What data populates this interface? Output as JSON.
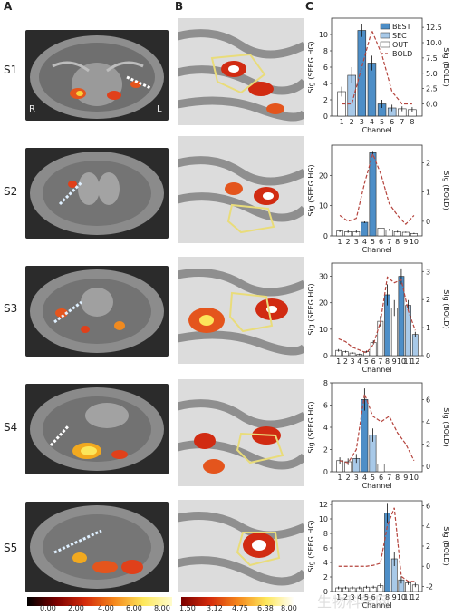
{
  "panels": {
    "a": "A",
    "b": "B",
    "c": "C"
  },
  "subjects": [
    "S1",
    "S2",
    "S3",
    "S4",
    "S5"
  ],
  "orientation": {
    "right": "R",
    "left": "L"
  },
  "colorbar_a": {
    "ticks": [
      "0.00",
      "2.00",
      "4.00",
      "6.00",
      "8.00"
    ]
  },
  "colorbar_b": {
    "ticks": [
      "1.50",
      "3.12",
      "4.75",
      "6.38",
      "8.00"
    ]
  },
  "watermark": "生物科学网",
  "chart_data": [
    {
      "type": "bar",
      "subject": "S1",
      "categories": [
        "1",
        "2",
        "3",
        "4",
        "5",
        "6",
        "7",
        "8"
      ],
      "groups": [
        "OUT",
        "SEC",
        "BEST",
        "BEST",
        "BEST",
        "SEC",
        "OUT",
        "OUT"
      ],
      "values": [
        3,
        5,
        10.5,
        6.5,
        1.5,
        1.0,
        0.9,
        0.8
      ],
      "errors": [
        0.6,
        1.0,
        0.8,
        0.9,
        0.5,
        0.4,
        0.3,
        0.3
      ],
      "bold": [
        0,
        0,
        6,
        12,
        8,
        2,
        0,
        0
      ],
      "ylim": [
        0,
        12
      ],
      "yticks": [
        0,
        2,
        4,
        6,
        8,
        10
      ],
      "ylim2": [
        -2,
        14
      ],
      "yticks2": [
        "0.0",
        "2.5",
        "5.0",
        "7.5",
        "10.0",
        "12.5"
      ],
      "xlabel": "Channel",
      "ylabel": "Sig (SEEG HG)",
      "ylabel2": "Sig (BOLD)",
      "legend": [
        "BEST",
        "SEC",
        "OUT",
        "BOLD"
      ]
    },
    {
      "type": "bar",
      "subject": "S2",
      "categories": [
        "1",
        "2",
        "3",
        "4",
        "5",
        "6",
        "7",
        "8",
        "9",
        "10"
      ],
      "groups": [
        "OUT",
        "OUT",
        "OUT",
        "BEST",
        "BEST",
        "OUT",
        "OUT",
        "OUT",
        "OUT",
        "OUT"
      ],
      "values": [
        1.6,
        1.4,
        1.4,
        4.5,
        27.5,
        2.6,
        2.0,
        1.4,
        1.2,
        0.8
      ],
      "errors": [
        0.4,
        0.4,
        0.4,
        0.3,
        0.6,
        0.3,
        0.3,
        0.3,
        0.2,
        0.2
      ],
      "bold": [
        0.2,
        0.0,
        0.1,
        1.3,
        2.3,
        1.6,
        0.6,
        0.2,
        -0.1,
        0.2
      ],
      "ylim": [
        0,
        30
      ],
      "yticks": [
        0,
        10,
        20
      ],
      "ylim2": [
        -0.5,
        2.6
      ],
      "yticks2": [
        "0",
        "1",
        "2"
      ],
      "xlabel": "Channel",
      "ylabel": "Sig (SEEG HG)",
      "ylabel2": "Sig (BOLD)"
    },
    {
      "type": "bar",
      "subject": "S3",
      "categories": [
        "1",
        "2",
        "3",
        "4",
        "5",
        "6",
        "7",
        "8",
        "9",
        "10",
        "11",
        "12"
      ],
      "groups": [
        "OUT",
        "OUT",
        "OUT",
        "OUT",
        "OUT",
        "OUT",
        "OUT",
        "BEST",
        "OUT",
        "BEST",
        "SEC",
        "SEC"
      ],
      "values": [
        2,
        1.5,
        1,
        0.5,
        1.5,
        5,
        13,
        23,
        18,
        30,
        19,
        8
      ],
      "errors": [
        0.5,
        0.4,
        0.3,
        0.3,
        0.4,
        0.8,
        2,
        4,
        3,
        3,
        2,
        1
      ],
      "bold": [
        0.6,
        0.5,
        0.3,
        0.2,
        0.1,
        0.4,
        1.2,
        2.8,
        2.6,
        2.7,
        1.6,
        0.9
      ],
      "ylim": [
        0,
        35
      ],
      "yticks": [
        0,
        10,
        20,
        30
      ],
      "ylim2": [
        0,
        3.3
      ],
      "yticks2": [
        "0",
        "1",
        "2",
        "3"
      ],
      "xlabel": "Channel",
      "ylabel": "Sig (SEEG HG)",
      "ylabel2": "Sig (BOLD)"
    },
    {
      "type": "bar",
      "subject": "S4",
      "categories": [
        "1",
        "2",
        "3",
        "4",
        "5",
        "6",
        "7",
        "8",
        "9",
        "10"
      ],
      "groups": [
        "OUT",
        "OUT",
        "SEC",
        "BEST",
        "SEC",
        "OUT",
        "OUT",
        "OUT",
        "OUT",
        "OUT"
      ],
      "values": [
        1.0,
        0.9,
        1.2,
        6.5,
        3.3,
        0.7,
        0,
        0,
        0,
        0
      ],
      "errors": [
        0.3,
        0.3,
        0.4,
        1.0,
        0.6,
        0.3,
        0,
        0,
        0,
        0
      ],
      "bold": [
        0.5,
        0.3,
        1.5,
        6.5,
        4.5,
        4.0,
        4.5,
        3.0,
        2.0,
        0.5
      ],
      "ylim": [
        0,
        8
      ],
      "yticks": [
        0,
        2,
        4,
        6,
        8
      ],
      "ylim2": [
        -0.5,
        7.5
      ],
      "yticks2": [
        "0",
        "2",
        "4",
        "6"
      ],
      "xlabel": "Channel",
      "ylabel": "Sig (SEEG HG)",
      "ylabel2": "Sig (BOLD)"
    },
    {
      "type": "bar",
      "subject": "S5",
      "categories": [
        "1",
        "2",
        "3",
        "4",
        "5",
        "6",
        "7",
        "8",
        "9",
        "10",
        "11",
        "12"
      ],
      "groups": [
        "OUT",
        "OUT",
        "OUT",
        "OUT",
        "OUT",
        "OUT",
        "OUT",
        "BEST",
        "SEC",
        "SEC",
        "OUT",
        "OUT"
      ],
      "values": [
        0.5,
        0.5,
        0.5,
        0.5,
        0.6,
        0.6,
        0.8,
        10.8,
        4.5,
        1.6,
        1.2,
        0.9
      ],
      "errors": [
        0.2,
        0.2,
        0.2,
        0.2,
        0.2,
        0.2,
        0.3,
        1.4,
        1.0,
        0.5,
        0.3,
        0.3
      ],
      "bold": [
        0.0,
        0.0,
        0.0,
        0.0,
        0.0,
        0.1,
        0.3,
        4.0,
        5.8,
        -1.0,
        -1.5,
        -1.5
      ],
      "ylim": [
        0,
        12.5
      ],
      "yticks": [
        0,
        2,
        4,
        6,
        8,
        10,
        12
      ],
      "ylim2": [
        -2.5,
        6.5
      ],
      "yticks2": [
        "-2",
        "0",
        "2",
        "4",
        "6"
      ],
      "xlabel": "Channel",
      "ylabel": "Sig (SEEG HG)",
      "ylabel2": "Sig (BOLD)"
    }
  ],
  "colors": {
    "best": "#4d8ec7",
    "sec": "#a8c9e8",
    "out": "#ffffff",
    "bold": "#b5453e",
    "edge": "#2c2c2c"
  }
}
